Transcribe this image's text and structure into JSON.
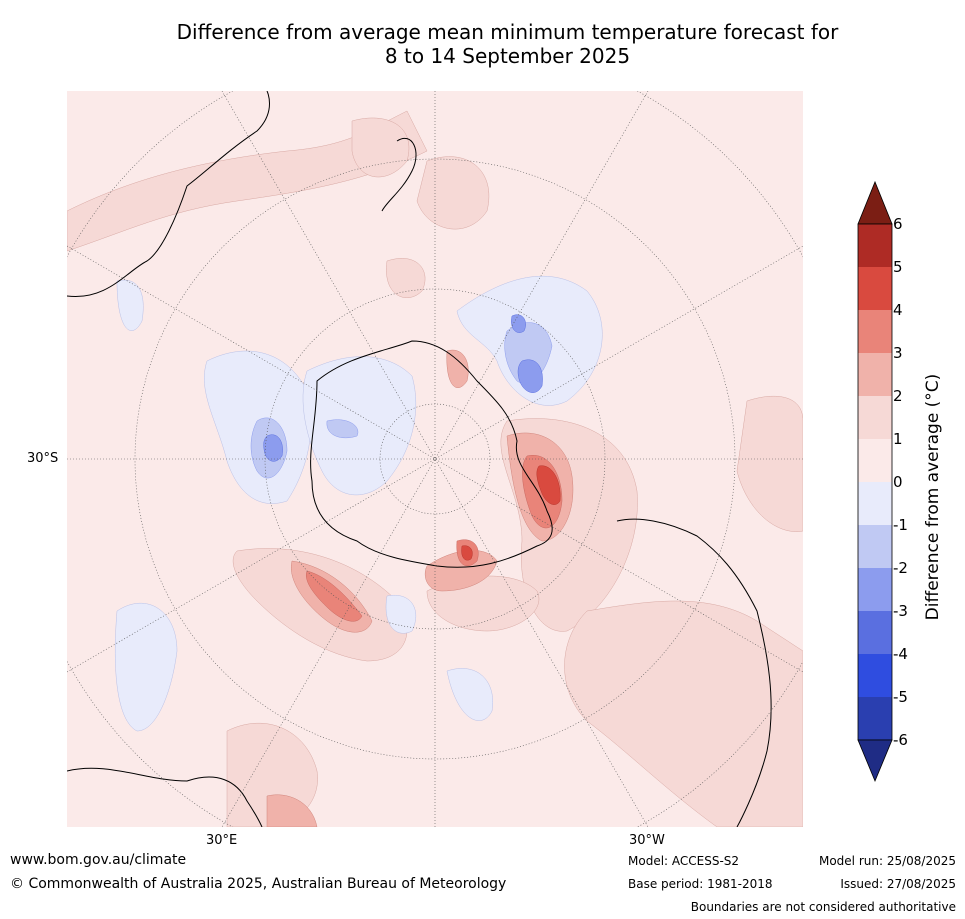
{
  "title_line1": "Difference from average mean minimum temperature forecast for",
  "title_line2": "8 to 14 September 2025",
  "map": {
    "projection": "south-polar-stereographic",
    "lat_label": "30°S",
    "lon_labels": [
      "30°E",
      "30°W"
    ],
    "anomaly_areas": [
      {
        "region": "Southern Ocean south of Africa",
        "anomaly_range_c": [
          -3,
          -1
        ]
      },
      {
        "region": "East Antarctica coast",
        "anomaly_range_c": [
          -2,
          -1
        ]
      },
      {
        "region": "South Pacific / Ross Sea",
        "anomaly_range_c": [
          -3,
          -1
        ]
      },
      {
        "region": "Weddell Sea / Antarctic Peninsula",
        "anomaly_range_c": [
          1,
          4
        ]
      },
      {
        "region": "Southern Ocean south-west of Australia",
        "anomaly_range_c": [
          1,
          3
        ]
      },
      {
        "region": "Amundsen-Bellingshausen Sea",
        "anomaly_range_c": [
          1,
          4
        ]
      },
      {
        "region": "South America",
        "anomaly_range_c": [
          0,
          2
        ]
      }
    ]
  },
  "colorbar": {
    "label": "Difference from average (°C)",
    "ticks": [
      "6",
      "5",
      "4",
      "3",
      "2",
      "1",
      "0",
      "-1",
      "-2",
      "-3",
      "-4",
      "-5",
      "-6"
    ],
    "colors": [
      "#7b1e14",
      "#ae2b25",
      "#d94a3f",
      "#e98479",
      "#f0b2aa",
      "#f6d9d6",
      "#fbeae9",
      "#e8ebfb",
      "#c0c9f3",
      "#8c9cee",
      "#5a6fe0",
      "#2f4de0",
      "#2a3fb0",
      "#1f2c85"
    ]
  },
  "footer": {
    "website": "www.bom.gov.au/climate",
    "copyright": "© Commonwealth of Australia 2025, Australian Bureau of Meteorology",
    "model": "Model: ACCESS-S2",
    "base_period": "Base period: 1981-2018",
    "model_run": "Model run: 25/08/2025",
    "issued": "Issued: 27/08/2025",
    "disclaimer": "Boundaries are not considered authoritative"
  }
}
